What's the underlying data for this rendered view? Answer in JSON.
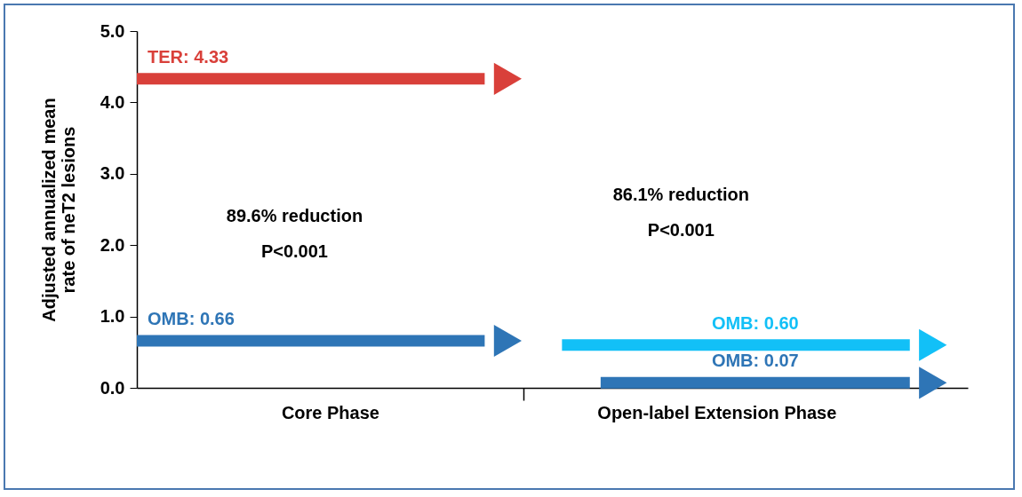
{
  "chart_data": {
    "type": "line",
    "ylabel": "Adjusted annualized mean rate of neT2 lesions",
    "categories": [
      null,
      null,
      null,
      null,
      null,
      "Core Phase",
      null,
      null,
      null,
      null,
      null,
      null,
      null,
      null,
      null,
      "Open-label Extension Phase",
      null,
      null,
      null,
      null,
      null
    ],
    "ylim": [
      0,
      5
    ],
    "yticks": [
      {
        "value": 0,
        "label": "0.0"
      },
      {
        "value": 1,
        "label": "1.0"
      },
      {
        "value": 2,
        "label": "2.0"
      },
      {
        "value": 3,
        "label": "3.0"
      },
      {
        "value": 4,
        "label": "4.0"
      },
      {
        "value": 5,
        "label": "5.0"
      }
    ],
    "grid": false,
    "marker": "none",
    "line_style": "solid",
    "series": [
      {
        "color": "#d9403a",
        "values": [
          4.33,
          4.33,
          4.33,
          4.33,
          4.33,
          4.33,
          4.33,
          4.33,
          4.33,
          4.33,
          null,
          null,
          null,
          null,
          null,
          null,
          null,
          null,
          null,
          null,
          null
        ],
        "value_labels": [
          "TER: 4.33",
          null,
          null,
          null,
          null,
          null,
          null,
          null,
          null,
          null,
          null,
          null,
          null,
          null,
          null,
          null,
          null,
          null,
          null,
          null,
          null
        ]
      },
      {
        "color": "#2e75b6",
        "values": [
          0.66,
          0.66,
          0.66,
          0.66,
          0.66,
          0.66,
          0.66,
          0.66,
          0.66,
          0.66,
          null,
          null,
          null,
          null,
          null,
          null,
          null,
          null,
          null,
          null,
          null
        ],
        "value_labels": [
          "OMB: 0.66",
          null,
          null,
          null,
          null,
          null,
          null,
          null,
          null,
          null,
          null,
          null,
          null,
          null,
          null,
          null,
          null,
          null,
          null,
          null,
          null
        ]
      },
      {
        "color": "#12c0f7",
        "values": [
          null,
          null,
          null,
          null,
          null,
          null,
          null,
          null,
          null,
          null,
          null,
          0.6,
          0.6,
          0.6,
          0.6,
          0.6,
          0.6,
          0.6,
          0.6,
          0.6,
          0.6
        ],
        "value_labels": [
          null,
          null,
          null,
          null,
          null,
          null,
          null,
          null,
          null,
          null,
          null,
          null,
          null,
          null,
          null,
          null,
          "OMB: 0.60",
          null,
          null,
          null,
          null
        ]
      },
      {
        "color": "#2e75b6",
        "values": [
          null,
          null,
          null,
          null,
          null,
          null,
          null,
          null,
          null,
          null,
          null,
          null,
          0.07,
          0.07,
          0.07,
          0.07,
          0.07,
          0.07,
          0.07,
          0.07,
          0.07
        ],
        "value_labels": [
          null,
          null,
          null,
          null,
          null,
          null,
          null,
          null,
          null,
          null,
          null,
          null,
          null,
          null,
          null,
          null,
          "OMB: 0.07",
          null,
          null,
          null,
          null
        ]
      }
    ],
    "annotations": [
      "89.6% reduction",
      "P<0.001",
      "86.1% reduction",
      "P<0.001"
    ]
  }
}
